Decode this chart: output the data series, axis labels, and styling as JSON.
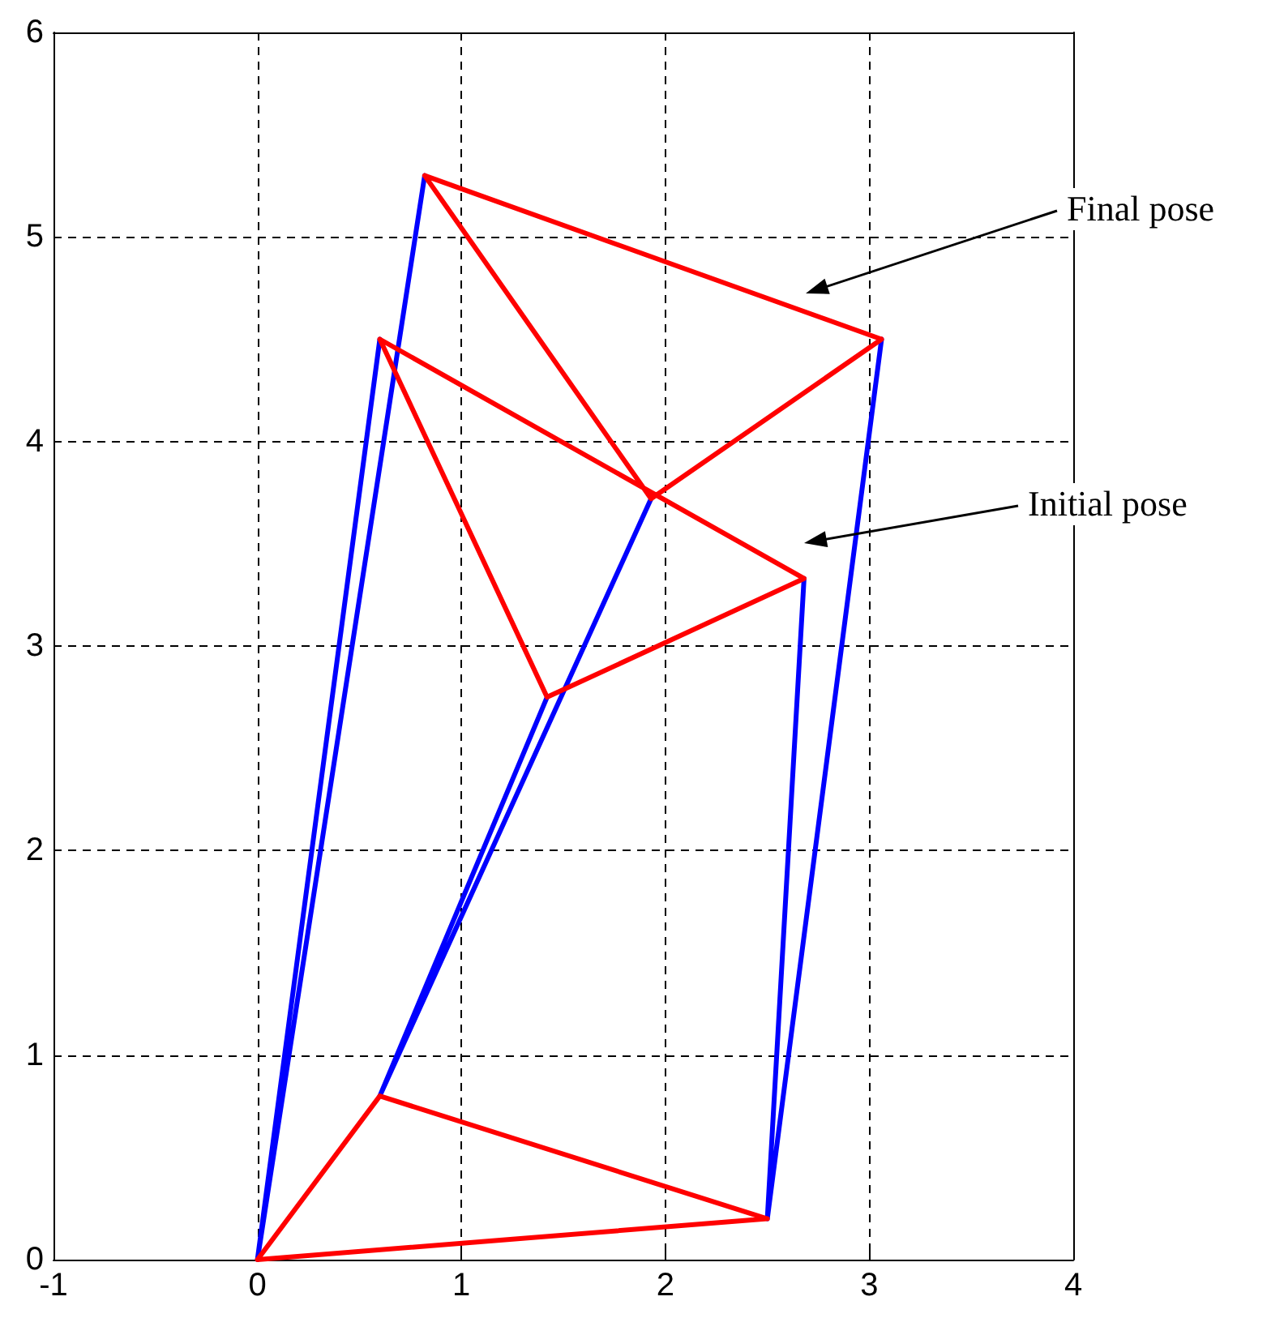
{
  "chart_data": {
    "type": "line",
    "xlim": [
      -1,
      4
    ],
    "xticks": [
      -1,
      0,
      1,
      2,
      3,
      4
    ],
    "ylim": [
      0,
      6
    ],
    "yticks": [
      0,
      1,
      2,
      3,
      4,
      5,
      6
    ],
    "grid": true,
    "marker": "none",
    "line_style": "solid",
    "series": [
      {
        "color": "#0000ff",
        "x": [
          0,
          0.6,
          null,
          0,
          0.82,
          null,
          0.6,
          1.42,
          null,
          0.6,
          1.93,
          null,
          2.5,
          2.68,
          null,
          2.5,
          3.06
        ],
        "values": [
          0,
          4.5,
          null,
          0,
          5.3,
          null,
          0.8,
          2.75,
          null,
          0.8,
          3.72,
          null,
          0.2,
          3.33,
          null,
          0.2,
          4.5
        ]
      },
      {
        "color": "#ff0000",
        "x": [
          0,
          0.6,
          null,
          0.6,
          2.5,
          null,
          2.5,
          0,
          null,
          0.6,
          2.68,
          null,
          2.68,
          1.42,
          null,
          1.42,
          0.6,
          null,
          0.82,
          3.06,
          null,
          3.06,
          1.93,
          null,
          1.93,
          0.82
        ],
        "values": [
          0,
          0.8,
          null,
          0.8,
          0.2,
          null,
          0.2,
          0,
          null,
          4.5,
          3.33,
          null,
          3.33,
          2.75,
          null,
          2.75,
          4.5,
          null,
          5.3,
          4.5,
          null,
          4.5,
          3.72,
          null,
          3.72,
          5.3
        ]
      }
    ],
    "annotations": [
      "Final pose",
      "Initial pose"
    ]
  }
}
